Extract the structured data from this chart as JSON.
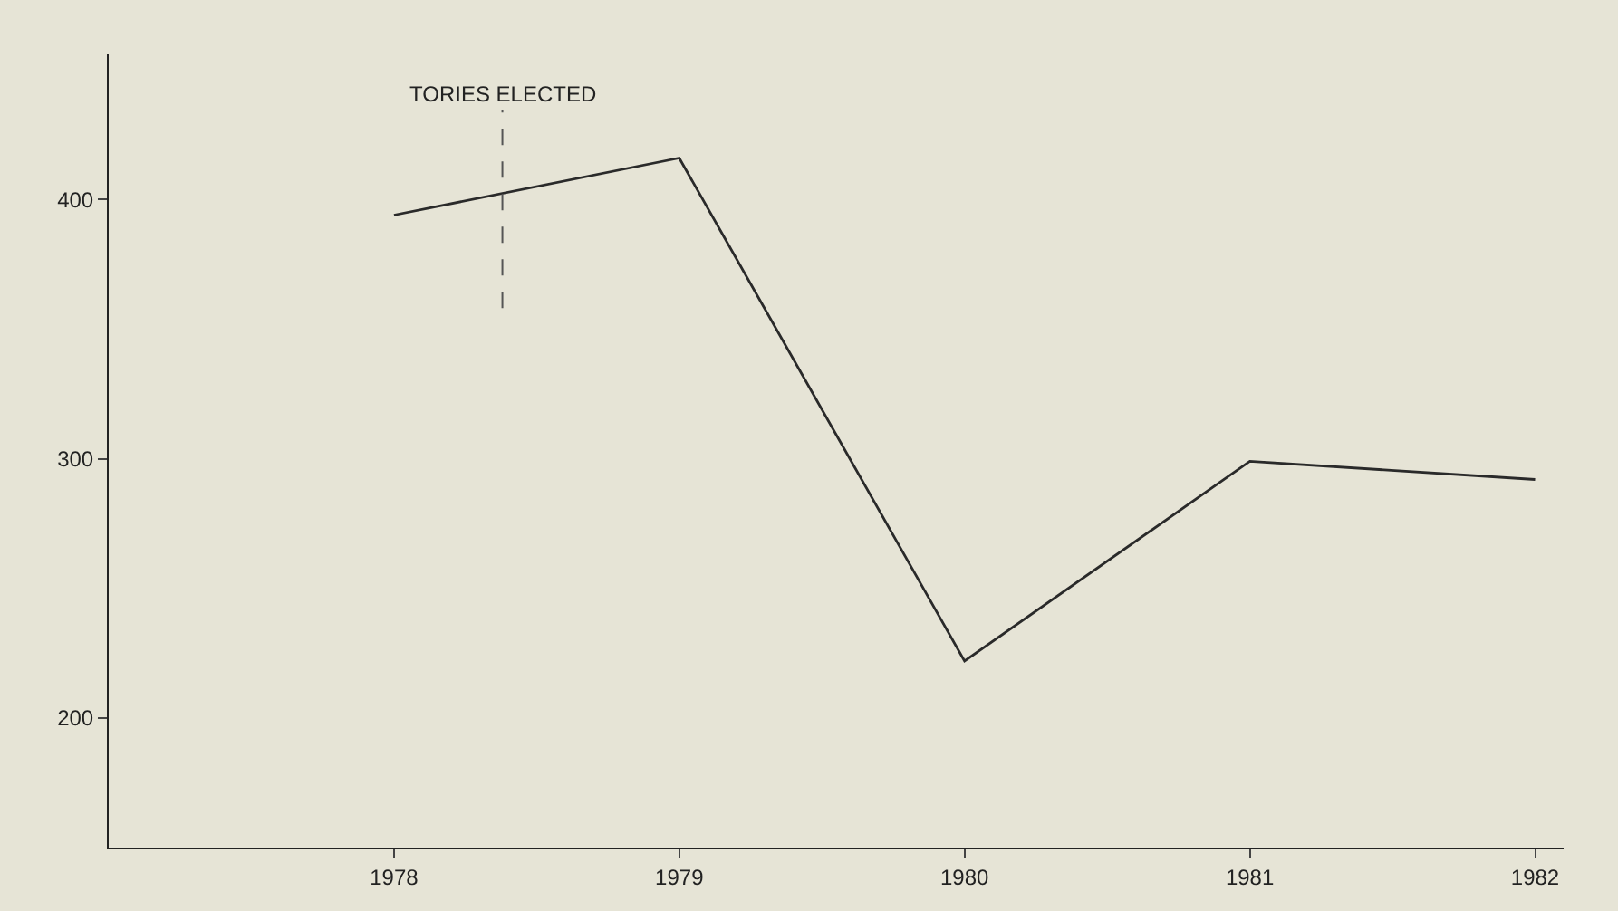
{
  "chart_data": {
    "type": "line",
    "x": [
      1978,
      1979,
      1980,
      1981,
      1982
    ],
    "series": [
      {
        "color": "#2a2a2a",
        "values": [
          394,
          416,
          222,
          299,
          292
        ]
      }
    ],
    "xlim": [
      1977,
      1982.1
    ],
    "xticks": [
      1978,
      1979,
      1980,
      1981,
      1982
    ],
    "ylim": [
      150,
      456
    ],
    "yticks": [
      200,
      300,
      400
    ],
    "ref_lines": [
      {
        "axis": "x",
        "value": 1978.38,
        "label": "TORIES ELECTED",
        "color": "#555555",
        "line_style": "dashed"
      }
    ],
    "grid": false,
    "marker": "none",
    "line_style": "solid"
  }
}
